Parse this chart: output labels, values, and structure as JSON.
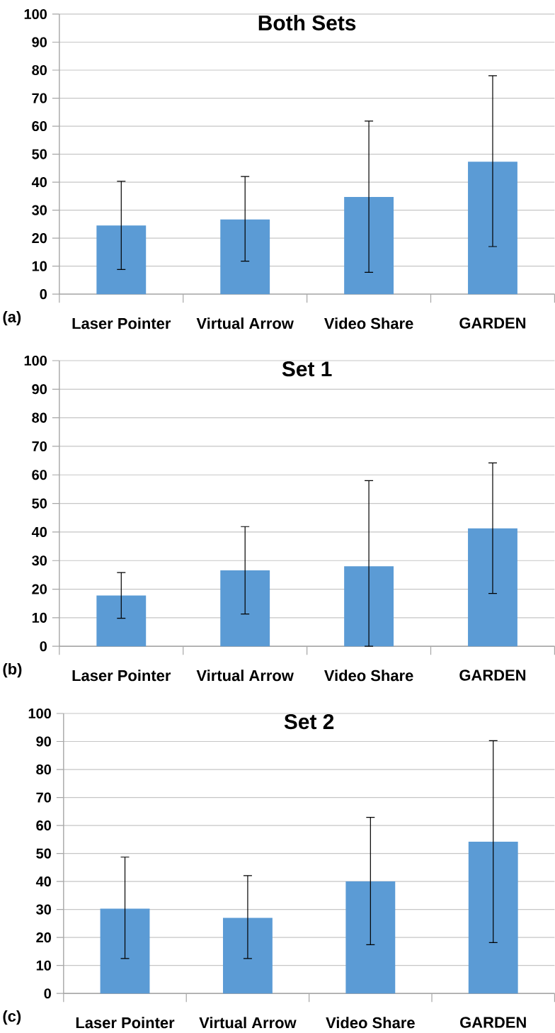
{
  "chart_data": [
    {
      "type": "bar",
      "title": "Both Sets",
      "categories": [
        "Laser Pointer",
        "Virtual Arrow",
        "Video Share",
        "GARDEN"
      ],
      "values": [
        24.5,
        26.7,
        34.7,
        47.3
      ],
      "errors": [
        [
          8.8,
          40.3
        ],
        [
          11.8,
          42
        ],
        [
          7.8,
          61.8
        ],
        [
          17,
          78
        ]
      ],
      "color": "#5b9bd5",
      "ylim": [
        0,
        100
      ],
      "yticks": [
        0,
        10,
        20,
        30,
        40,
        50,
        60,
        70,
        80,
        90,
        100
      ],
      "grid": "y",
      "annotations": [
        "(a)"
      ]
    },
    {
      "type": "bar",
      "title": "Set 1",
      "categories": [
        "Laser Pointer",
        "Virtual Arrow",
        "Video Share",
        "GARDEN"
      ],
      "values": [
        17.8,
        26.6,
        28,
        41.3
      ],
      "errors": [
        [
          9.8,
          25.8
        ],
        [
          11.3,
          41.9
        ],
        [
          0,
          58
        ],
        [
          18.5,
          64.2
        ]
      ],
      "color": "#5b9bd5",
      "ylim": [
        0,
        100
      ],
      "yticks": [
        0,
        10,
        20,
        30,
        40,
        50,
        60,
        70,
        80,
        90,
        100
      ],
      "grid": "y",
      "annotations": [
        "(b)"
      ]
    },
    {
      "type": "bar",
      "title": "Set 2",
      "categories": [
        "Laser Pointer",
        "Virtual Arrow",
        "Video Share",
        "GARDEN"
      ],
      "values": [
        30.3,
        27,
        40,
        54.2
      ],
      "errors": [
        [
          12.5,
          48.7
        ],
        [
          12.5,
          42.1
        ],
        [
          17.4,
          62.9
        ],
        [
          18.2,
          90.3
        ]
      ],
      "color": "#5b9bd5",
      "ylim": [
        0,
        100
      ],
      "yticks": [
        0,
        10,
        20,
        30,
        40,
        50,
        60,
        70,
        80,
        90,
        100
      ],
      "grid": "y",
      "annotations": [
        "(c)"
      ]
    }
  ]
}
